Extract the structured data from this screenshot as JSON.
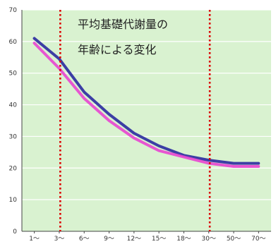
{
  "chart_data": {
    "type": "line",
    "title_lines": [
      "平均基礎代謝量の",
      "年齢による変化"
    ],
    "categories": [
      "1〜",
      "3〜",
      "6〜",
      "9〜",
      "12〜",
      "15〜",
      "18〜",
      "30〜",
      "50〜",
      "70〜"
    ],
    "series": [
      {
        "values": [
          61,
          54.5,
          44,
          37,
          31,
          27,
          24,
          22.5,
          21.5,
          21.5
        ]
      },
      {
        "values": [
          59.5,
          51.5,
          42,
          35,
          29.5,
          25.5,
          23.5,
          21.5,
          20.5,
          20.5
        ]
      }
    ],
    "yticks": [
      0,
      10,
      20,
      30,
      40,
      50,
      60,
      70
    ],
    "ylim": [
      0,
      70
    ],
    "grid": true,
    "reference_lines_after_categories": [
      "3〜",
      "30〜"
    ],
    "colors": {
      "background": "#d9f2d0",
      "grid": "#ffffff",
      "series_1": "#2a2aa0",
      "series_2": "#e845d0",
      "reference": "#dd0000"
    }
  }
}
